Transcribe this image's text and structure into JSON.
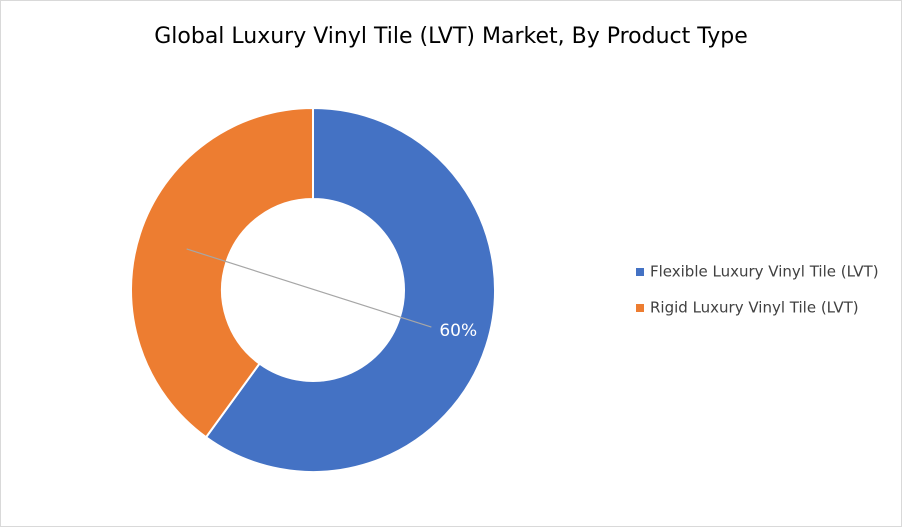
{
  "chart_data": {
    "type": "donut",
    "title": "Global Luxury Vinyl Tile (LVT) Market, By Product Type",
    "categories": [
      "Flexible Luxury Vinyl Tile (LVT)",
      "Rigid Luxury Vinyl Tile (LVT)"
    ],
    "values": [
      60,
      40
    ],
    "value_labels": [
      "60%",
      null
    ],
    "colors": [
      "#4472c4",
      "#ed7d31"
    ],
    "legend": "right"
  }
}
